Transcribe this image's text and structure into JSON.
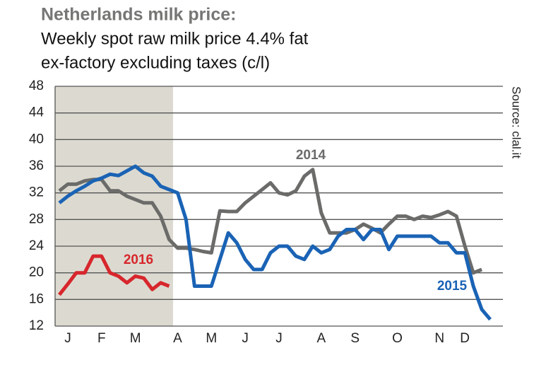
{
  "chart_data": {
    "type": "line",
    "title": "Netherlands milk price:",
    "subtitle": [
      "Weekly spot raw milk price 4.4% fat",
      "ex-factory excluding taxes (c/l)"
    ],
    "source": "Source: clal.it",
    "categories": [
      null,
      "J",
      null,
      null,
      null,
      "F",
      null,
      null,
      null,
      "M",
      null,
      null,
      null,
      null,
      "A",
      null,
      null,
      null,
      "M",
      null,
      null,
      null,
      "J",
      null,
      null,
      null,
      "J",
      null,
      null,
      null,
      null,
      "A",
      null,
      null,
      null,
      "S",
      null,
      null,
      null,
      null,
      "O",
      null,
      null,
      null,
      null,
      "N",
      null,
      null,
      "D",
      null,
      null,
      null,
      null
    ],
    "series": [
      {
        "name": "2014",
        "color": "#6b6c6a",
        "values": [
          32.3,
          33.3,
          33.3,
          33.8,
          34,
          34,
          32.3,
          32.3,
          31.5,
          31,
          30.5,
          30.5,
          28.5,
          25,
          23.7,
          23.7,
          23.5,
          23.2,
          23,
          29.3,
          29.2,
          29.2,
          30.5,
          31.5,
          32.5,
          33.5,
          32,
          31.7,
          32.3,
          34.5,
          35.5,
          29,
          26,
          26,
          26,
          26.5,
          27.3,
          26.7,
          26,
          27.3,
          28.5,
          28.5,
          28,
          28.5,
          28.3,
          28.7,
          29.2,
          28.5,
          24,
          20,
          20.5,
          null,
          null
        ]
      },
      {
        "name": "2015",
        "color": "#1a63b5",
        "values": [
          30.5,
          31.5,
          32.3,
          33,
          33.8,
          34.2,
          34.8,
          34.6,
          35.3,
          36,
          35,
          34.5,
          33,
          32.5,
          32,
          28,
          18,
          18,
          18,
          22,
          26,
          24.5,
          22,
          20.5,
          20.5,
          23,
          24,
          24,
          22.5,
          22,
          24,
          23,
          23.5,
          25.5,
          26.5,
          26.5,
          25,
          26.5,
          26.5,
          23.5,
          25.5,
          25.5,
          25.5,
          25.5,
          25.5,
          24.5,
          24.5,
          23,
          23,
          18,
          14.5,
          13,
          null
        ]
      },
      {
        "name": "2016",
        "color": "#d7262c",
        "values": [
          16.7,
          18.3,
          20,
          20,
          22.5,
          22.5,
          20,
          19.5,
          18.5,
          19.5,
          19.2,
          17.5,
          18.5,
          18,
          null,
          null,
          null,
          null,
          null,
          null,
          null,
          null,
          null,
          null,
          null,
          null,
          null,
          null,
          null,
          null,
          null,
          null,
          null,
          null,
          null,
          null,
          null,
          null,
          null,
          null,
          null,
          null,
          null,
          null,
          null,
          null,
          null,
          null,
          null,
          null,
          null,
          null,
          null
        ]
      }
    ],
    "ylim": [
      12,
      48
    ],
    "yticks": [
      12,
      16,
      20,
      24,
      28,
      32,
      36,
      40,
      44,
      48
    ],
    "grid": true
  }
}
